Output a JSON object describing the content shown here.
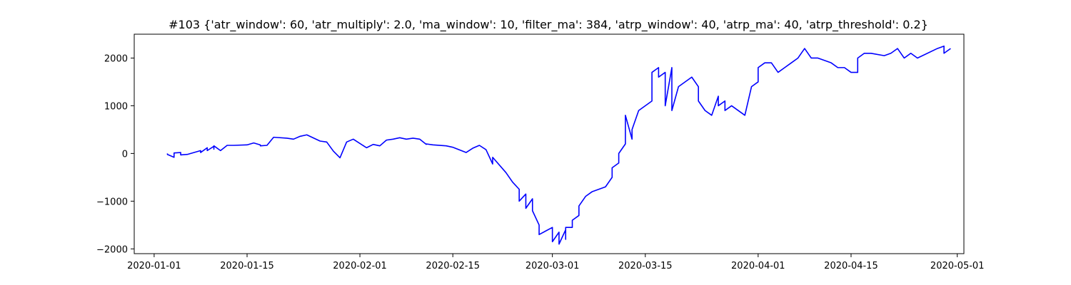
{
  "chart_data": {
    "type": "line",
    "title": "#103 {'atr_window': 60, 'atr_multiply': 2.0, 'ma_window': 10, 'filter_ma': 384, 'atrp_window': 40, 'atrp_ma': 40, 'atrp_threshold': 0.2}",
    "xlabel": "",
    "ylabel": "",
    "x_type": "date",
    "xlim": [
      "2020-12-29",
      "2020-05-02"
    ],
    "ylim": [
      -2100,
      2500
    ],
    "x_ticks": [
      "2020-01-01",
      "2020-01-15",
      "2020-02-01",
      "2020-02-15",
      "2020-03-01",
      "2020-03-15",
      "2020-04-01",
      "2020-04-15",
      "2020-05-01"
    ],
    "x_tick_labels": [
      "2020-01-01",
      "2020-01-15",
      "2020-02-01",
      "2020-02-15",
      "2020-03-01",
      "2020-03-15",
      "2020-04-01",
      "2020-04-15",
      "2020-05-01"
    ],
    "y_ticks": [
      -2000,
      -1000,
      0,
      1000,
      2000
    ],
    "y_tick_labels": [
      "−2000",
      "−1000",
      "0",
      "1000",
      "2000"
    ],
    "grid": false,
    "legend": "none",
    "series": [
      {
        "color": "#0000ff",
        "x": [
          "2020-01-03",
          "2020-01-03",
          "2020-01-04",
          "2020-01-04",
          "2020-01-05",
          "2020-01-05",
          "2020-01-06",
          "2020-01-08",
          "2020-01-08",
          "2020-01-09",
          "2020-01-09",
          "2020-01-10",
          "2020-01-10",
          "2020-01-10",
          "2020-01-11",
          "2020-01-12",
          "2020-01-13",
          "2020-01-15",
          "2020-01-16",
          "2020-01-17",
          "2020-01-17",
          "2020-01-18",
          "2020-01-19",
          "2020-01-21",
          "2020-01-22",
          "2020-01-23",
          "2020-01-24",
          "2020-01-26",
          "2020-01-27",
          "2020-01-28",
          "2020-01-29",
          "2020-01-30",
          "2020-01-31",
          "2020-02-02",
          "2020-02-03",
          "2020-02-04",
          "2020-02-05",
          "2020-02-06",
          "2020-02-07",
          "2020-02-08",
          "2020-02-09",
          "2020-02-10",
          "2020-02-11",
          "2020-02-11",
          "2020-02-12",
          "2020-02-14",
          "2020-02-15",
          "2020-02-17",
          "2020-02-18",
          "2020-02-19",
          "2020-02-20",
          "2020-02-21",
          "2020-02-21",
          "2020-02-23",
          "2020-02-24",
          "2020-02-25",
          "2020-02-25",
          "2020-02-26",
          "2020-02-26",
          "2020-02-27",
          "2020-02-27",
          "2020-02-28",
          "2020-02-28",
          "2020-03-01",
          "2020-03-01",
          "2020-03-02",
          "2020-03-02",
          "2020-03-03",
          "2020-03-03",
          "2020-03-03",
          "2020-03-04",
          "2020-03-04",
          "2020-03-05",
          "2020-03-05",
          "2020-03-06",
          "2020-03-07",
          "2020-03-09",
          "2020-03-10",
          "2020-03-10",
          "2020-03-11",
          "2020-03-11",
          "2020-03-12",
          "2020-03-12",
          "2020-03-13",
          "2020-03-13",
          "2020-03-14",
          "2020-03-16",
          "2020-03-16",
          "2020-03-17",
          "2020-03-17",
          "2020-03-18",
          "2020-03-18",
          "2020-03-19",
          "2020-03-19",
          "2020-03-20",
          "2020-03-22",
          "2020-03-23",
          "2020-03-23",
          "2020-03-24",
          "2020-03-25",
          "2020-03-26",
          "2020-03-26",
          "2020-03-27",
          "2020-03-27",
          "2020-03-28",
          "2020-03-30",
          "2020-03-31",
          "2020-04-01",
          "2020-04-01",
          "2020-04-02",
          "2020-04-03",
          "2020-04-04",
          "2020-04-05",
          "2020-04-06",
          "2020-04-07",
          "2020-04-08",
          "2020-04-09",
          "2020-04-10",
          "2020-04-12",
          "2020-04-13",
          "2020-04-14",
          "2020-04-15",
          "2020-04-16",
          "2020-04-16",
          "2020-04-17",
          "2020-04-18",
          "2020-04-20",
          "2020-04-21",
          "2020-04-22",
          "2020-04-23",
          "2020-04-24",
          "2020-04-25",
          "2020-04-28",
          "2020-04-29",
          "2020-04-29",
          "2020-04-30"
        ],
        "values": [
          0,
          -20,
          -80,
          10,
          20,
          -30,
          -20,
          60,
          20,
          120,
          60,
          150,
          90,
          160,
          60,
          170,
          170,
          180,
          220,
          180,
          160,
          170,
          340,
          320,
          300,
          360,
          390,
          260,
          240,
          50,
          -90,
          240,
          300,
          120,
          190,
          160,
          280,
          300,
          330,
          300,
          320,
          300,
          190,
          200,
          180,
          160,
          130,
          20,
          110,
          170,
          80,
          -220,
          -80,
          -400,
          -600,
          -750,
          -1000,
          -850,
          -1150,
          -950,
          -1200,
          -1500,
          -1700,
          -1550,
          -1850,
          -1650,
          -1900,
          -1600,
          -1800,
          -1550,
          -1550,
          -1400,
          -1300,
          -1100,
          -900,
          -800,
          -700,
          -500,
          -300,
          -200,
          0,
          200,
          800,
          300,
          500,
          900,
          1100,
          1700,
          1800,
          1600,
          1700,
          1000,
          1800,
          900,
          1400,
          1600,
          1400,
          1100,
          900,
          800,
          1200,
          1000,
          1100,
          900,
          1000,
          800,
          1400,
          1500,
          1800,
          1900,
          1900,
          1700,
          1800,
          1900,
          2000,
          2200,
          2000,
          2000,
          1900,
          1800,
          1800,
          1700,
          1700,
          2000,
          2100,
          2100,
          2050,
          2100,
          2200,
          2000,
          2100,
          2000,
          2200,
          2250,
          2100,
          2200
        ]
      }
    ]
  }
}
